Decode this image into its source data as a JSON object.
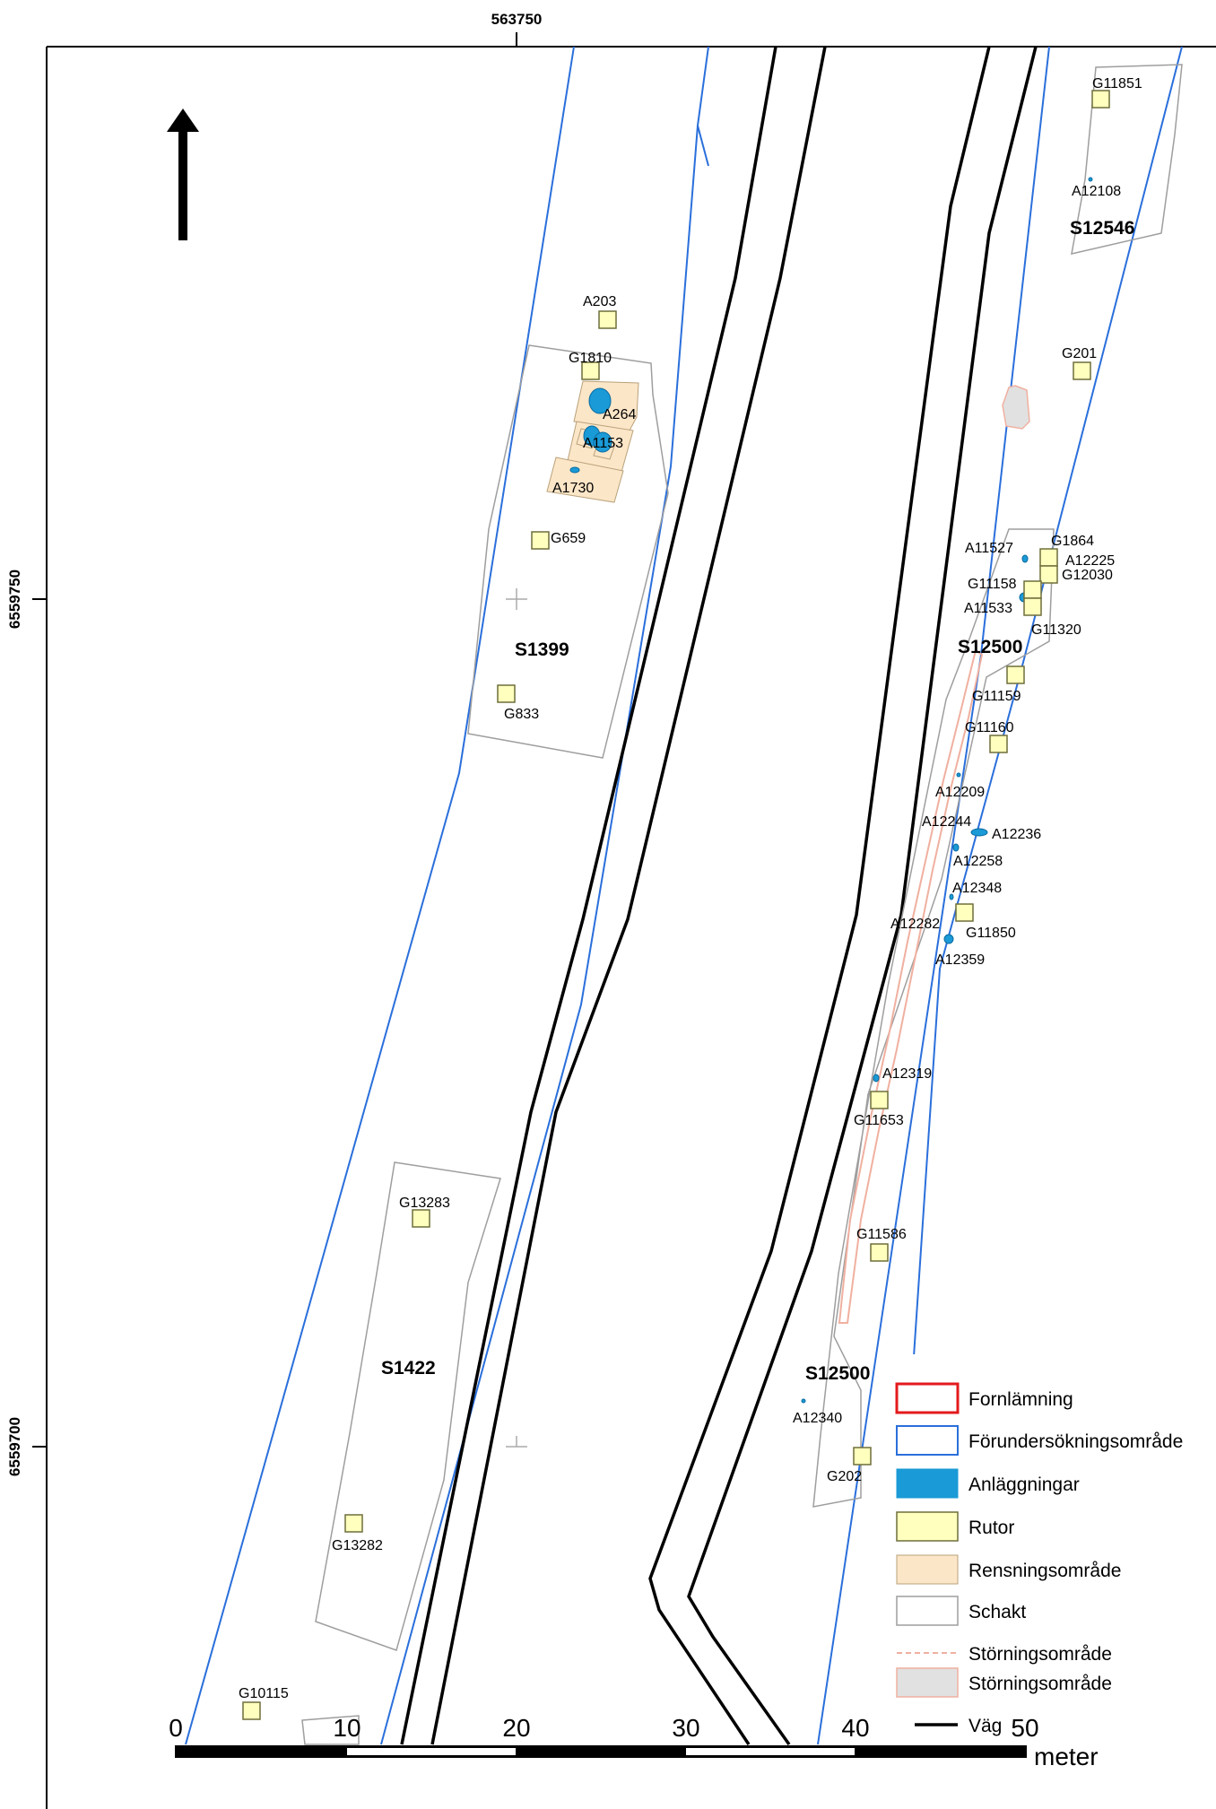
{
  "coordinates": {
    "easting_top": "563750",
    "northing_upper": "6559750",
    "northing_lower": "6559700"
  },
  "north_arrow": {
    "icon": "north-arrow-icon"
  },
  "areas": {
    "s1399": "S1399",
    "s1422": "S1422",
    "s12500_upper": "S12500",
    "s12500_lower": "S12500",
    "s12546": "S12546"
  },
  "features": {
    "a203": "A203",
    "g1810": "G1810",
    "a264": "A264",
    "a1153": "A1153",
    "a1730": "A1730",
    "g659": "G659",
    "g833": "G833",
    "g11851": "G11851",
    "a12108": "A12108",
    "g201": "G201",
    "a11527": "A11527",
    "g1864": "G1864",
    "a12225": "A12225",
    "g12030": "G12030",
    "g11158": "G11158",
    "a11533": "A11533",
    "g11320": "G11320",
    "g11159": "G11159",
    "g11160": "G11160",
    "a12209": "A12209",
    "a12244": "A12244",
    "a12236": "A12236",
    "a12258": "A12258",
    "a12348": "A12348",
    "a12282": "A12282",
    "g11850": "G11850",
    "a12359": "A12359",
    "a12319": "A12319",
    "g11653": "G11653",
    "g11586": "G11586",
    "a12340": "A12340",
    "g202": "G202",
    "g13283": "G13283",
    "g13282": "G13282",
    "g10115": "G10115"
  },
  "legend": {
    "fornlamning": "Fornlämning",
    "forundersokning": "Förundersökningsområde",
    "anlaggningar": "Anläggningar",
    "rutor": "Rutor",
    "rensning": "Rensningsområde",
    "schakt": "Schakt",
    "storning_line": "Störningsområde",
    "storning_fill": "Störningsområde",
    "vag": "Väg"
  },
  "scale": {
    "ticks": [
      "0",
      "10",
      "20",
      "30",
      "40",
      "50"
    ],
    "unit": "meter"
  },
  "colors": {
    "fornlamning": "#e31a1c",
    "forundersokning": "#2a6fdb",
    "anlaggningar": "#1a9ad6",
    "rutor": "#ffffbe",
    "rensning": "#fce6c8",
    "schakt": "#9e9e9e",
    "storning_line": "#f0b0a0",
    "storning_fill": "#e1e1e1",
    "vag": "#000000"
  }
}
